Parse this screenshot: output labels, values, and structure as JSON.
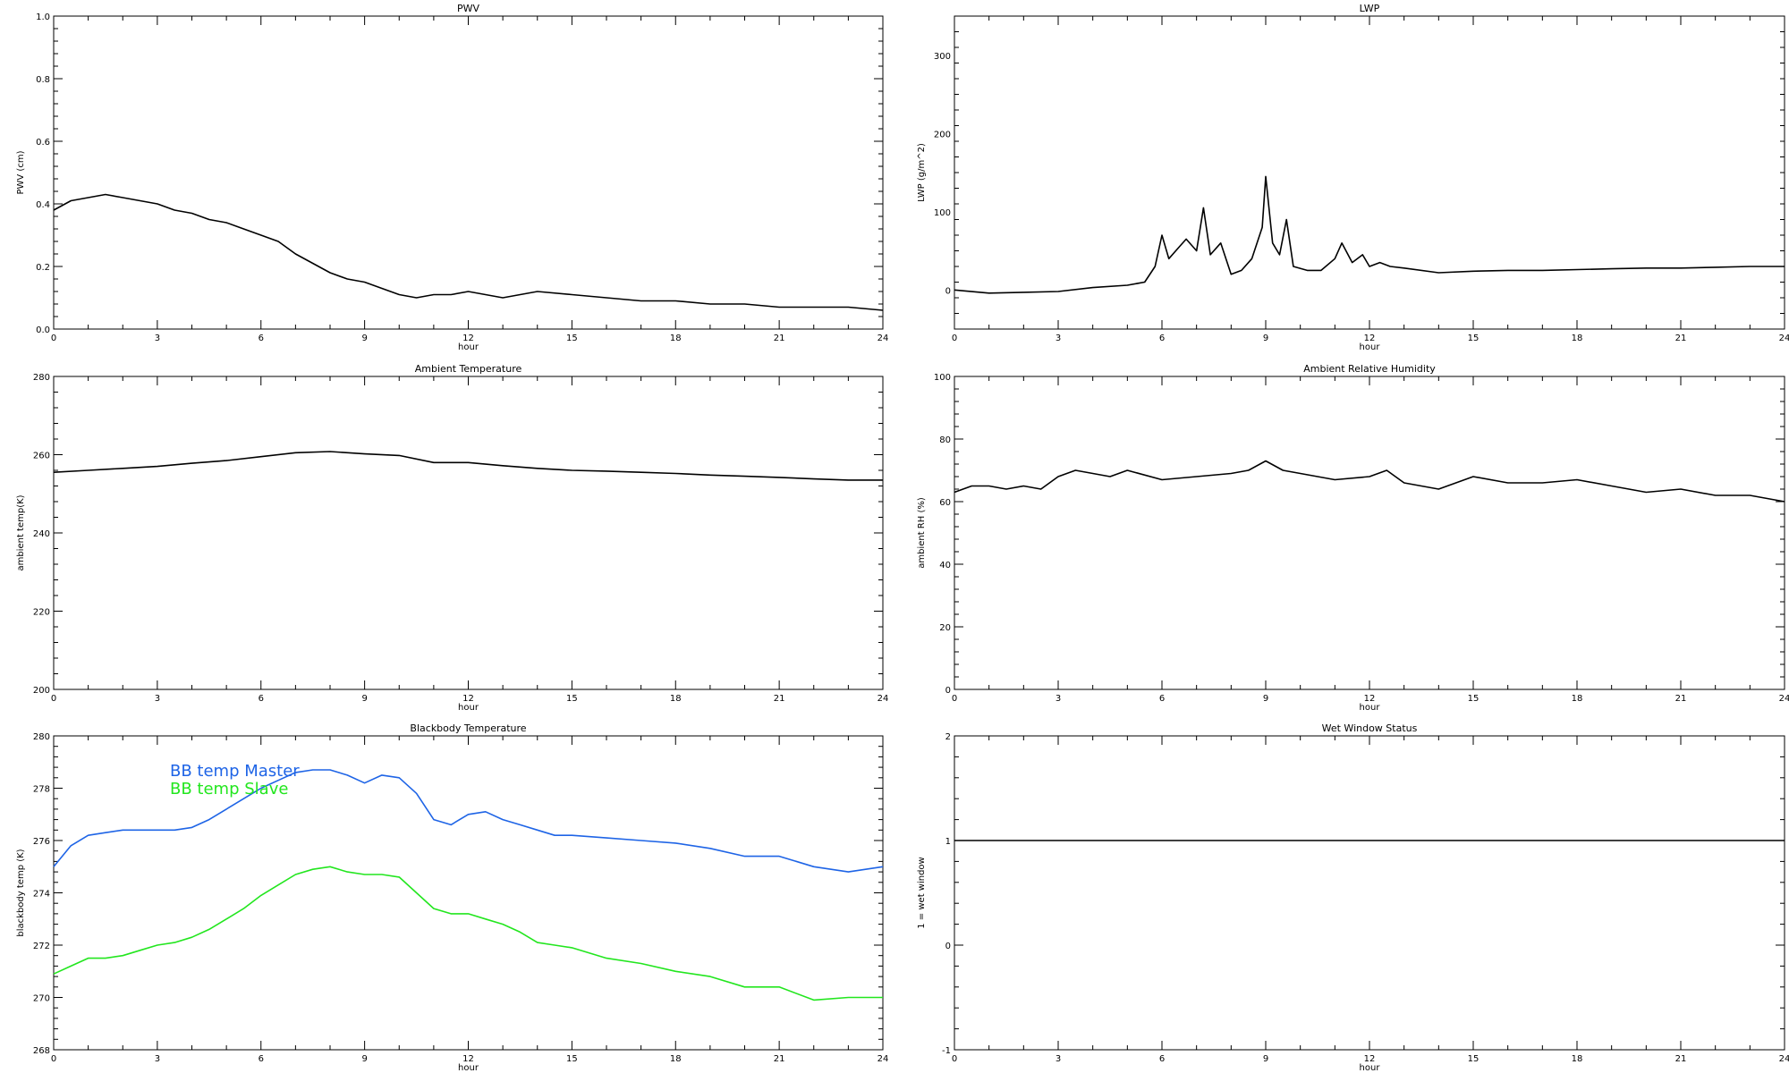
{
  "chart_data": [
    {
      "type": "line",
      "title": "PWV",
      "xlabel": "hour",
      "ylabel": "PWV (cm)",
      "xlim": [
        0,
        24
      ],
      "ylim": [
        0.0,
        1.0
      ],
      "xticks": [
        0,
        3,
        6,
        9,
        12,
        15,
        18,
        21,
        24
      ],
      "yticks": [
        0.0,
        0.2,
        0.4,
        0.6,
        0.8,
        1.0
      ],
      "ytick_labels": [
        "0.0",
        "0.2",
        "0.4",
        "0.6",
        "0.8",
        "1.0"
      ],
      "series": [
        {
          "color": "#000000",
          "x": [
            0,
            0.5,
            1,
            1.5,
            2,
            2.5,
            3,
            3.5,
            4,
            4.5,
            5,
            5.5,
            6,
            6.5,
            7,
            7.5,
            8,
            8.5,
            9,
            9.5,
            10,
            10.5,
            11,
            11.5,
            12,
            13,
            14,
            15,
            16,
            17,
            18,
            19,
            20,
            21,
            22,
            23,
            24
          ],
          "y": [
            0.38,
            0.41,
            0.42,
            0.43,
            0.42,
            0.41,
            0.4,
            0.38,
            0.37,
            0.35,
            0.34,
            0.32,
            0.3,
            0.28,
            0.24,
            0.21,
            0.18,
            0.16,
            0.15,
            0.13,
            0.11,
            0.1,
            0.11,
            0.11,
            0.12,
            0.1,
            0.12,
            0.11,
            0.1,
            0.09,
            0.09,
            0.08,
            0.08,
            0.07,
            0.07,
            0.07,
            0.06
          ]
        }
      ]
    },
    {
      "type": "line",
      "title": "LWP",
      "xlabel": "hour",
      "ylabel": "LWP (g/m^2)",
      "xlim": [
        0,
        24
      ],
      "ylim": [
        -50,
        350
      ],
      "xticks": [
        0,
        3,
        6,
        9,
        12,
        15,
        18,
        21,
        24
      ],
      "yticks": [
        0,
        100,
        200,
        300
      ],
      "ytick_labels": [
        "0",
        "100",
        "200",
        "300"
      ],
      "series": [
        {
          "color": "#000000",
          "x": [
            0,
            1,
            2,
            3,
            4,
            5,
            5.5,
            5.8,
            6.0,
            6.2,
            6.5,
            6.7,
            7.0,
            7.2,
            7.4,
            7.7,
            8.0,
            8.3,
            8.6,
            8.9,
            9.0,
            9.2,
            9.4,
            9.6,
            9.8,
            10.2,
            10.6,
            11.0,
            11.2,
            11.5,
            11.8,
            12.0,
            12.3,
            12.6,
            13,
            14,
            15,
            16,
            17,
            18,
            19,
            20,
            21,
            22,
            23,
            24
          ],
          "y": [
            0,
            -4,
            -3,
            -2,
            3,
            6,
            10,
            30,
            70,
            40,
            55,
            65,
            50,
            105,
            45,
            60,
            20,
            25,
            40,
            80,
            145,
            60,
            45,
            90,
            30,
            25,
            25,
            40,
            60,
            35,
            45,
            30,
            35,
            30,
            28,
            22,
            24,
            25,
            25,
            26,
            27,
            28,
            28,
            29,
            30,
            30
          ]
        }
      ]
    },
    {
      "type": "line",
      "title": "Ambient Temperature",
      "xlabel": "hour",
      "ylabel": "ambient temp(K)",
      "xlim": [
        0,
        24
      ],
      "ylim": [
        200,
        280
      ],
      "xticks": [
        0,
        3,
        6,
        9,
        12,
        15,
        18,
        21,
        24
      ],
      "yticks": [
        200,
        220,
        240,
        260,
        280
      ],
      "ytick_labels": [
        "200",
        "220",
        "240",
        "260",
        "280"
      ],
      "series": [
        {
          "color": "#000000",
          "x": [
            0,
            1,
            2,
            3,
            4,
            5,
            6,
            7,
            8,
            9,
            10,
            11,
            12,
            13,
            14,
            15,
            16,
            17,
            18,
            19,
            20,
            21,
            22,
            23,
            24
          ],
          "y": [
            255.5,
            256.0,
            256.5,
            257.0,
            257.8,
            258.5,
            259.5,
            260.5,
            260.8,
            260.2,
            259.8,
            258.0,
            258.0,
            257.2,
            256.5,
            256.0,
            255.8,
            255.5,
            255.2,
            254.8,
            254.5,
            254.2,
            253.8,
            253.5,
            253.5
          ]
        }
      ]
    },
    {
      "type": "line",
      "title": "Ambient Relative Humidity",
      "xlabel": "hour",
      "ylabel": "ambient RH (%)",
      "xlim": [
        0,
        24
      ],
      "ylim": [
        0,
        100
      ],
      "xticks": [
        0,
        3,
        6,
        9,
        12,
        15,
        18,
        21,
        24
      ],
      "yticks": [
        0,
        20,
        40,
        60,
        80,
        100
      ],
      "ytick_labels": [
        "0",
        "20",
        "40",
        "60",
        "80",
        "100"
      ],
      "series": [
        {
          "color": "#000000",
          "x": [
            0,
            0.5,
            1,
            1.5,
            2,
            2.5,
            3,
            3.5,
            4,
            4.5,
            5,
            6,
            7,
            8,
            8.5,
            9,
            9.5,
            10,
            10.5,
            11,
            12,
            12.5,
            13,
            13.5,
            14,
            15,
            16,
            17,
            18,
            19,
            20,
            21,
            22,
            23,
            24
          ],
          "y": [
            63,
            65,
            65,
            64,
            65,
            64,
            68,
            70,
            69,
            68,
            70,
            67,
            68,
            69,
            70,
            73,
            70,
            69,
            68,
            67,
            68,
            70,
            66,
            65,
            64,
            68,
            66,
            66,
            67,
            65,
            63,
            64,
            62,
            62,
            60
          ]
        }
      ]
    },
    {
      "type": "line",
      "title": "Blackbody Temperature",
      "xlabel": "hour",
      "ylabel": "blackbody temp (K)",
      "xlim": [
        0,
        24
      ],
      "ylim": [
        268,
        280
      ],
      "xticks": [
        0,
        3,
        6,
        9,
        12,
        15,
        18,
        21,
        24
      ],
      "yticks": [
        268,
        270,
        272,
        274,
        276,
        278,
        280
      ],
      "ytick_labels": [
        "268",
        "270",
        "272",
        "274",
        "276",
        "278",
        "280"
      ],
      "legend": "top-left",
      "series": [
        {
          "name": "BB temp Master",
          "color": "#1e64e6",
          "x": [
            0,
            0.5,
            1,
            1.5,
            2,
            2.5,
            3,
            3.5,
            4,
            4.5,
            5,
            5.5,
            6,
            6.5,
            7,
            7.5,
            8,
            8.5,
            9,
            9.5,
            10,
            10.5,
            11,
            11.5,
            12,
            12.5,
            13,
            13.5,
            14,
            14.5,
            15,
            16,
            17,
            18,
            19,
            20,
            21,
            22,
            23,
            24
          ],
          "y": [
            275.0,
            275.8,
            276.2,
            276.3,
            276.4,
            276.4,
            276.4,
            276.4,
            276.5,
            276.8,
            277.2,
            277.6,
            278.0,
            278.3,
            278.6,
            278.7,
            278.7,
            278.5,
            278.2,
            278.5,
            278.4,
            277.8,
            276.8,
            276.6,
            277.0,
            277.1,
            276.8,
            276.6,
            276.4,
            276.2,
            276.2,
            276.1,
            276.0,
            275.9,
            275.7,
            275.4,
            275.4,
            275.0,
            274.8,
            275.0
          ]
        },
        {
          "name": "BB temp Slave",
          "color": "#22e61e",
          "x": [
            0,
            0.5,
            1,
            1.5,
            2,
            2.5,
            3,
            3.5,
            4,
            4.5,
            5,
            5.5,
            6,
            6.5,
            7,
            7.5,
            8,
            8.5,
            9,
            9.5,
            10,
            10.5,
            11,
            11.5,
            12,
            12.5,
            13,
            13.5,
            14,
            14.5,
            15,
            16,
            17,
            18,
            19,
            20,
            21,
            22,
            23,
            24
          ],
          "y": [
            270.9,
            271.2,
            271.5,
            271.5,
            271.6,
            271.8,
            272.0,
            272.1,
            272.3,
            272.6,
            273.0,
            273.4,
            273.9,
            274.3,
            274.7,
            274.9,
            275.0,
            274.8,
            274.7,
            274.7,
            274.6,
            274.0,
            273.4,
            273.2,
            273.2,
            273.0,
            272.8,
            272.5,
            272.1,
            272.0,
            271.9,
            271.5,
            271.3,
            271.0,
            270.8,
            270.4,
            270.4,
            269.9,
            270.0,
            270.0
          ]
        }
      ]
    },
    {
      "type": "line",
      "title": "Wet Window Status",
      "xlabel": "hour",
      "ylabel": "1 = wet window",
      "xlim": [
        0,
        24
      ],
      "ylim": [
        -1,
        2
      ],
      "xticks": [
        0,
        3,
        6,
        9,
        12,
        15,
        18,
        21,
        24
      ],
      "yticks": [
        -1,
        0,
        1,
        2
      ],
      "ytick_labels": [
        "-1",
        "0",
        "1",
        "2"
      ],
      "series": [
        {
          "color": "#000000",
          "x": [
            0,
            24
          ],
          "y": [
            1,
            1
          ]
        }
      ]
    }
  ]
}
